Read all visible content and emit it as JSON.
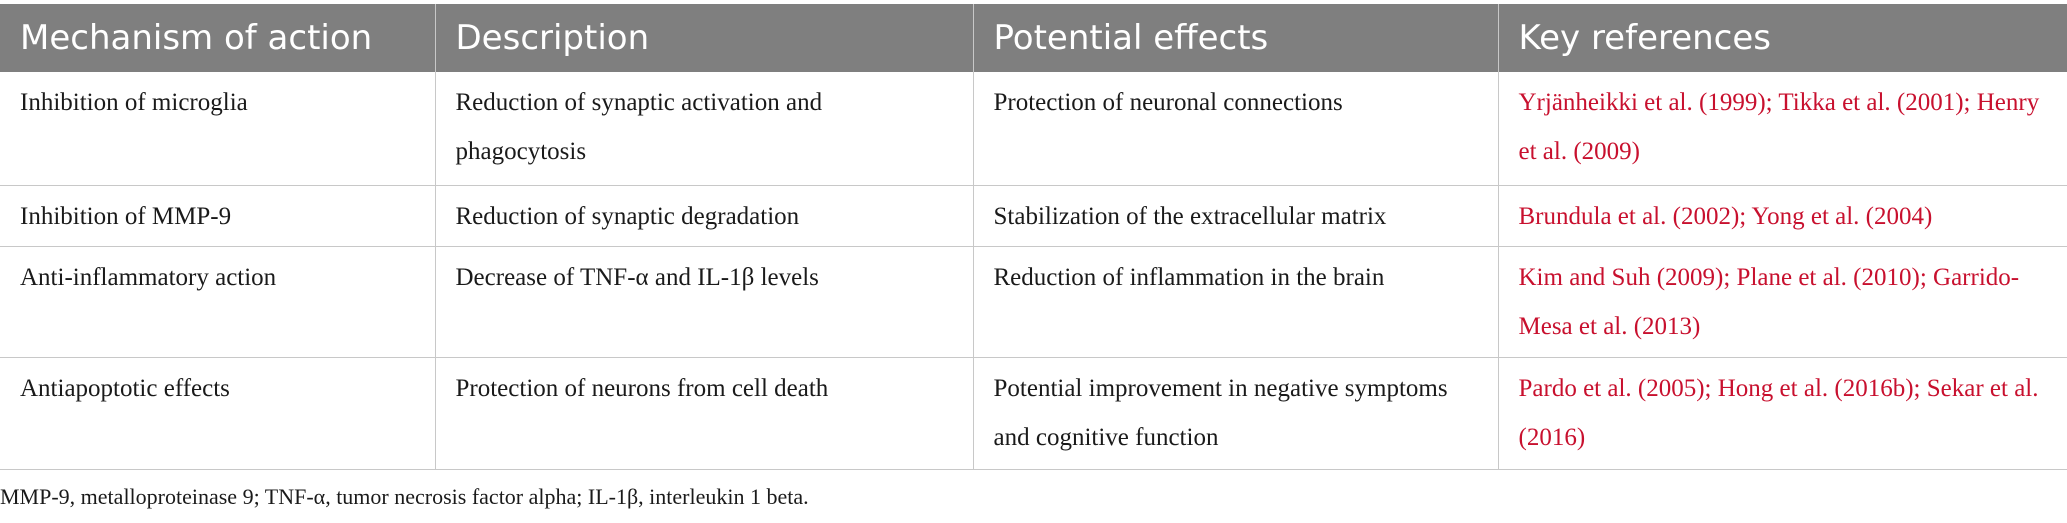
{
  "table": {
    "headers": [
      "Mechanism of action",
      "Description",
      "Potential effects",
      "Key references"
    ],
    "rows": [
      {
        "mechanism": "Inhibition of microglia",
        "description": "Reduction of synaptic activation and phagocytosis",
        "effects": "Protection of neuronal connections",
        "references": "Yrjänheikki et al. (1999); Tikka et al. (2001); Henry et al. (2009)"
      },
      {
        "mechanism": "Inhibition of MMP-9",
        "description": "Reduction of synaptic degradation",
        "effects": "Stabilization of the extracellular matrix",
        "references": "Brundula et al. (2002); Yong et al. (2004)"
      },
      {
        "mechanism": "Anti-inflammatory action",
        "description": "Decrease of TNF-α and IL-1β levels",
        "effects": "Reduction of inflammation in the brain",
        "references": "Kim and Suh (2009); Plane et al. (2010); Garrido-Mesa et al. (2013)"
      },
      {
        "mechanism": "Antiapoptotic effects",
        "description": "Protection of neurons from cell death",
        "effects": "Potential improvement in negative symptoms and cognitive function",
        "references": "Pardo et al. (2005); Hong et al. (2016b); Sekar et al. (2016)"
      }
    ]
  },
  "footnote": "MMP-9, metalloproteinase 9; TNF-α, tumor necrosis factor alpha; IL-1β, interleukin 1 beta.",
  "colors": {
    "header_bg": "#7f7f7f",
    "header_text": "#ffffff",
    "reference_link": "#c8102e",
    "body_text": "#1a1a1a",
    "grid_line": "#c8c8c8"
  }
}
